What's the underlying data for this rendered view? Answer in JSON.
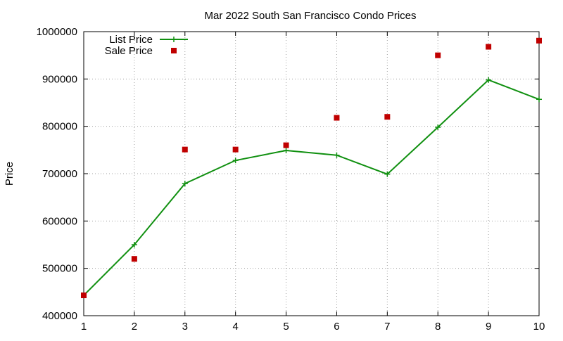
{
  "chart_data": {
    "type": "line",
    "title": "Mar 2022 South San Francisco Condo Prices",
    "xlabel": "",
    "ylabel": "Price",
    "xlim": [
      1,
      10
    ],
    "ylim": [
      400000,
      1000000
    ],
    "x_ticks": [
      1,
      2,
      3,
      4,
      5,
      6,
      7,
      8,
      9,
      10
    ],
    "y_ticks": [
      400000,
      500000,
      600000,
      700000,
      800000,
      900000,
      1000000
    ],
    "grid": true,
    "legend_position": "top-left",
    "series": [
      {
        "name": "List Price",
        "style": "line+points",
        "color": "#109010",
        "x": [
          1,
          2,
          3,
          4,
          5,
          6,
          7,
          8,
          9,
          10
        ],
        "y": [
          443000,
          550000,
          679000,
          728000,
          749000,
          739000,
          699000,
          798000,
          898000,
          857000
        ]
      },
      {
        "name": "Sale Price",
        "style": "points",
        "color": "#c00000",
        "x": [
          1,
          2,
          3,
          4,
          5,
          6,
          7,
          8,
          9,
          10
        ],
        "y": [
          443000,
          520000,
          751000,
          751000,
          760000,
          818000,
          820000,
          950000,
          968000,
          981000
        ]
      }
    ]
  }
}
